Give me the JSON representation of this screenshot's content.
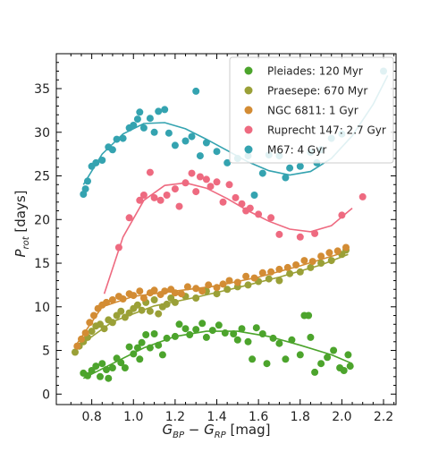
{
  "chart_data": {
    "type": "scatter",
    "xlim": [
      0.63,
      2.26
    ],
    "ylim": [
      -1.2,
      39
    ],
    "x_ticks": [
      0.8,
      1.0,
      1.2,
      1.4,
      1.6,
      1.8,
      2.0,
      2.2
    ],
    "x_tick_labels": [
      "0.8",
      "1.0",
      "1.2",
      "1.4",
      "1.6",
      "1.8",
      "2.0",
      "2.2"
    ],
    "y_ticks": [
      0,
      5,
      10,
      15,
      20,
      25,
      30,
      35
    ],
    "y_tick_labels": [
      "0",
      "5",
      "10",
      "15",
      "20",
      "25",
      "30",
      "35"
    ],
    "legend_position": "top-right",
    "grid": false,
    "series": [
      {
        "name": "Pleiades: 120 Myr",
        "color": "#4ca42c",
        "points": [
          [
            0.76,
            2.4
          ],
          [
            0.78,
            2.1
          ],
          [
            0.8,
            2.7
          ],
          [
            0.82,
            3.2
          ],
          [
            0.84,
            2.0
          ],
          [
            0.85,
            3.5
          ],
          [
            0.87,
            2.8
          ],
          [
            0.88,
            1.8
          ],
          [
            0.9,
            3.0
          ],
          [
            0.92,
            4.1
          ],
          [
            0.94,
            3.6
          ],
          [
            0.96,
            3.0
          ],
          [
            0.98,
            5.4
          ],
          [
            1.0,
            4.6
          ],
          [
            1.02,
            5.3
          ],
          [
            1.03,
            4.0
          ],
          [
            1.04,
            5.9
          ],
          [
            1.06,
            6.8
          ],
          [
            1.08,
            5.3
          ],
          [
            1.1,
            6.9
          ],
          [
            1.12,
            5.6
          ],
          [
            1.14,
            4.5
          ],
          [
            1.16,
            6.4
          ],
          [
            1.2,
            6.6
          ],
          [
            1.22,
            8.0
          ],
          [
            1.25,
            7.5
          ],
          [
            1.27,
            6.8
          ],
          [
            1.3,
            7.4
          ],
          [
            1.33,
            8.1
          ],
          [
            1.35,
            6.5
          ],
          [
            1.38,
            7.3
          ],
          [
            1.41,
            7.9
          ],
          [
            1.44,
            7.0
          ],
          [
            1.48,
            6.9
          ],
          [
            1.5,
            6.2
          ],
          [
            1.52,
            7.5
          ],
          [
            1.55,
            6.0
          ],
          [
            1.57,
            4.0
          ],
          [
            1.59,
            7.6
          ],
          [
            1.62,
            6.9
          ],
          [
            1.64,
            3.5
          ],
          [
            1.67,
            6.4
          ],
          [
            1.7,
            5.8
          ],
          [
            1.73,
            4.0
          ],
          [
            1.76,
            6.2
          ],
          [
            1.8,
            4.5
          ],
          [
            1.82,
            9.0
          ],
          [
            1.84,
            9.0
          ],
          [
            1.85,
            6.5
          ],
          [
            1.87,
            2.5
          ],
          [
            1.9,
            3.5
          ],
          [
            1.93,
            4.2
          ],
          [
            1.96,
            5.0
          ],
          [
            1.99,
            3.0
          ],
          [
            2.01,
            2.7
          ],
          [
            2.03,
            4.5
          ],
          [
            2.04,
            3.2
          ]
        ],
        "trend": [
          [
            0.76,
            1.8
          ],
          [
            0.9,
            3.5
          ],
          [
            1.05,
            5.3
          ],
          [
            1.2,
            6.6
          ],
          [
            1.35,
            7.2
          ],
          [
            1.5,
            7.2
          ],
          [
            1.65,
            6.6
          ],
          [
            1.8,
            5.6
          ],
          [
            1.95,
            4.5
          ],
          [
            2.05,
            3.5
          ]
        ]
      },
      {
        "name": "Praesepe: 670 Myr",
        "color": "#9aa037",
        "points": [
          [
            0.72,
            4.8
          ],
          [
            0.74,
            5.5
          ],
          [
            0.76,
            6.0
          ],
          [
            0.78,
            6.5
          ],
          [
            0.8,
            7.2
          ],
          [
            0.82,
            7.8
          ],
          [
            0.84,
            8.0
          ],
          [
            0.86,
            7.5
          ],
          [
            0.88,
            8.5
          ],
          [
            0.9,
            8.2
          ],
          [
            0.92,
            9.0
          ],
          [
            0.94,
            9.5
          ],
          [
            0.96,
            8.8
          ],
          [
            0.98,
            9.3
          ],
          [
            1.0,
            9.8
          ],
          [
            1.02,
            10.2
          ],
          [
            1.04,
            9.6
          ],
          [
            1.06,
            10.5
          ],
          [
            1.08,
            9.5
          ],
          [
            1.1,
            10.8
          ],
          [
            1.12,
            9.2
          ],
          [
            1.14,
            10.0
          ],
          [
            1.16,
            10.3
          ],
          [
            1.18,
            11.0
          ],
          [
            1.2,
            10.5
          ],
          [
            1.25,
            11.2
          ],
          [
            1.3,
            11.0
          ],
          [
            1.35,
            11.8
          ],
          [
            1.4,
            11.5
          ],
          [
            1.45,
            12.0
          ],
          [
            1.5,
            12.3
          ],
          [
            1.55,
            12.5
          ],
          [
            1.6,
            12.9
          ],
          [
            1.65,
            13.2
          ],
          [
            1.7,
            13.0
          ],
          [
            1.75,
            13.8
          ],
          [
            1.8,
            14.0
          ],
          [
            1.85,
            14.5
          ],
          [
            1.9,
            15.0
          ],
          [
            1.95,
            15.3
          ],
          [
            2.0,
            16.0
          ],
          [
            2.02,
            16.5
          ]
        ],
        "trend": [
          [
            0.72,
            5.2
          ],
          [
            0.9,
            8.3
          ],
          [
            1.1,
            10.1
          ],
          [
            1.3,
            11.1
          ],
          [
            1.5,
            12.2
          ],
          [
            1.7,
            13.4
          ],
          [
            1.9,
            14.8
          ],
          [
            2.03,
            16.0
          ]
        ]
      },
      {
        "name": "NGC 6811: 1 Gyr",
        "color": "#d38c34",
        "points": [
          [
            0.73,
            5.5
          ],
          [
            0.75,
            6.3
          ],
          [
            0.77,
            7.0
          ],
          [
            0.79,
            8.2
          ],
          [
            0.81,
            9.0
          ],
          [
            0.83,
            9.8
          ],
          [
            0.85,
            10.2
          ],
          [
            0.87,
            10.5
          ],
          [
            0.9,
            10.8
          ],
          [
            0.93,
            11.2
          ],
          [
            0.95,
            10.9
          ],
          [
            0.98,
            11.5
          ],
          [
            1.0,
            11.3
          ],
          [
            1.03,
            11.8
          ],
          [
            1.05,
            11.0
          ],
          [
            1.08,
            11.6
          ],
          [
            1.1,
            11.9
          ],
          [
            1.13,
            11.4
          ],
          [
            1.15,
            11.8
          ],
          [
            1.18,
            12.0
          ],
          [
            1.2,
            11.6
          ],
          [
            1.23,
            11.5
          ],
          [
            1.26,
            12.3
          ],
          [
            1.3,
            12.1
          ],
          [
            1.33,
            11.8
          ],
          [
            1.36,
            12.5
          ],
          [
            1.4,
            12.2
          ],
          [
            1.43,
            12.6
          ],
          [
            1.46,
            13.0
          ],
          [
            1.5,
            12.8
          ],
          [
            1.54,
            13.5
          ],
          [
            1.58,
            13.3
          ],
          [
            1.62,
            13.9
          ],
          [
            1.66,
            14.0
          ],
          [
            1.7,
            14.3
          ],
          [
            1.74,
            14.5
          ],
          [
            1.78,
            14.8
          ],
          [
            1.82,
            15.3
          ],
          [
            1.86,
            15.2
          ],
          [
            1.9,
            15.8
          ],
          [
            1.94,
            16.2
          ],
          [
            1.98,
            16.4
          ],
          [
            2.02,
            16.8
          ]
        ],
        "trend": [
          [
            0.73,
            5.8
          ],
          [
            0.85,
            10.0
          ],
          [
            1.0,
            11.2
          ],
          [
            1.2,
            11.8
          ],
          [
            1.4,
            12.4
          ],
          [
            1.6,
            13.4
          ],
          [
            1.8,
            14.7
          ],
          [
            2.02,
            16.3
          ]
        ]
      },
      {
        "name": "Ruprecht 147: 2.7 Gyr",
        "color": "#ee6a80",
        "points": [
          [
            0.93,
            16.8
          ],
          [
            0.98,
            20.2
          ],
          [
            1.03,
            22.2
          ],
          [
            1.05,
            22.8
          ],
          [
            1.08,
            25.4
          ],
          [
            1.1,
            22.5
          ],
          [
            1.13,
            22.2
          ],
          [
            1.16,
            22.8
          ],
          [
            1.2,
            23.5
          ],
          [
            1.22,
            21.5
          ],
          [
            1.25,
            24.2
          ],
          [
            1.28,
            25.3
          ],
          [
            1.3,
            23.2
          ],
          [
            1.32,
            24.9
          ],
          [
            1.35,
            24.6
          ],
          [
            1.37,
            23.8
          ],
          [
            1.4,
            24.3
          ],
          [
            1.43,
            22.0
          ],
          [
            1.46,
            24.0
          ],
          [
            1.49,
            22.5
          ],
          [
            1.52,
            21.8
          ],
          [
            1.54,
            21.0
          ],
          [
            1.56,
            21.3
          ],
          [
            1.6,
            20.6
          ],
          [
            1.66,
            20.2
          ],
          [
            1.7,
            18.3
          ],
          [
            1.8,
            18.0
          ],
          [
            1.87,
            18.4
          ],
          [
            2.0,
            20.5
          ],
          [
            2.1,
            22.6
          ]
        ],
        "trend": [
          [
            0.86,
            11.5
          ],
          [
            0.95,
            18.0
          ],
          [
            1.05,
            22.2
          ],
          [
            1.15,
            23.9
          ],
          [
            1.25,
            24.2
          ],
          [
            1.35,
            23.6
          ],
          [
            1.45,
            22.4
          ],
          [
            1.55,
            21.0
          ],
          [
            1.65,
            19.8
          ],
          [
            1.75,
            18.9
          ],
          [
            1.85,
            18.6
          ],
          [
            1.95,
            19.3
          ],
          [
            2.05,
            21.3
          ]
        ]
      },
      {
        "name": "M67: 4 Gyr",
        "color": "#34a3b0",
        "points": [
          [
            0.76,
            22.9
          ],
          [
            0.77,
            23.5
          ],
          [
            0.78,
            24.4
          ],
          [
            0.8,
            26.1
          ],
          [
            0.82,
            26.5
          ],
          [
            0.85,
            26.8
          ],
          [
            0.88,
            28.3
          ],
          [
            0.9,
            28.0
          ],
          [
            0.92,
            29.2
          ],
          [
            0.95,
            29.3
          ],
          [
            0.98,
            30.5
          ],
          [
            1.0,
            30.8
          ],
          [
            1.02,
            31.5
          ],
          [
            1.03,
            32.3
          ],
          [
            1.05,
            30.5
          ],
          [
            1.08,
            31.6
          ],
          [
            1.1,
            30.0
          ],
          [
            1.12,
            32.4
          ],
          [
            1.15,
            32.6
          ],
          [
            1.17,
            29.9
          ],
          [
            1.2,
            28.5
          ],
          [
            1.25,
            29.0
          ],
          [
            1.28,
            29.5
          ],
          [
            1.3,
            34.7
          ],
          [
            1.32,
            27.3
          ],
          [
            1.35,
            28.8
          ],
          [
            1.4,
            27.8
          ],
          [
            1.45,
            26.5
          ],
          [
            1.5,
            27.0
          ],
          [
            1.55,
            27.3
          ],
          [
            1.58,
            22.8
          ],
          [
            1.62,
            25.3
          ],
          [
            1.65,
            27.4
          ],
          [
            1.7,
            27.3
          ],
          [
            1.73,
            24.8
          ],
          [
            1.75,
            25.9
          ],
          [
            1.8,
            26.1
          ],
          [
            1.85,
            27.7
          ],
          [
            1.88,
            26.5
          ],
          [
            1.9,
            28.0
          ],
          [
            1.95,
            29.3
          ],
          [
            2.0,
            29.8
          ],
          [
            2.2,
            37.0
          ]
        ],
        "trend": [
          [
            0.76,
            24.0
          ],
          [
            0.85,
            27.5
          ],
          [
            0.95,
            29.8
          ],
          [
            1.05,
            31.0
          ],
          [
            1.15,
            31.1
          ],
          [
            1.25,
            30.4
          ],
          [
            1.35,
            29.2
          ],
          [
            1.45,
            27.9
          ],
          [
            1.55,
            26.6
          ],
          [
            1.65,
            25.6
          ],
          [
            1.75,
            25.1
          ],
          [
            1.85,
            25.5
          ],
          [
            1.95,
            27.0
          ],
          [
            2.05,
            29.6
          ],
          [
            2.15,
            33.2
          ],
          [
            2.22,
            36.5
          ]
        ]
      }
    ]
  }
}
